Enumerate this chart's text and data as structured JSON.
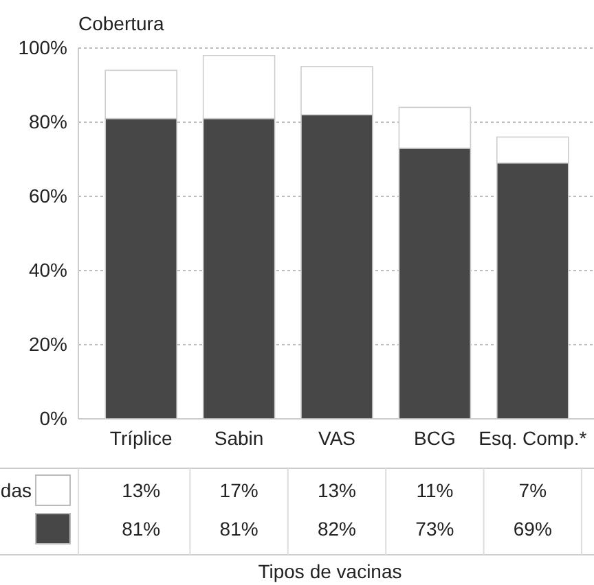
{
  "chart_data": {
    "type": "bar",
    "stacked": true,
    "title": "Cobertura",
    "annotations": [
      "Tipos de vacinas"
    ],
    "categories": [
      "Tríplice",
      "Sabin",
      "VAS",
      "BCG",
      "Esq. Comp.*"
    ],
    "series": [
      {
        "color": "#474747",
        "values": [
          81,
          81,
          82,
          73,
          69
        ],
        "value_labels": [
          "81%",
          "81%",
          "82%",
          "73%",
          "69%"
        ]
      },
      {
        "name": "das",
        "color": "#ffffff",
        "values": [
          13,
          17,
          13,
          11,
          7
        ],
        "value_labels": [
          "13%",
          "17%",
          "13%",
          "11%",
          "7%"
        ]
      }
    ],
    "ylim": [
      0,
      100
    ],
    "yticks": [
      {
        "value": 0,
        "label": "0%"
      },
      {
        "value": 20,
        "label": "20%"
      },
      {
        "value": 40,
        "label": "40%"
      },
      {
        "value": 60,
        "label": "60%"
      },
      {
        "value": 80,
        "label": "80%"
      },
      {
        "value": 100,
        "label": "100%"
      }
    ],
    "grid": "y"
  }
}
